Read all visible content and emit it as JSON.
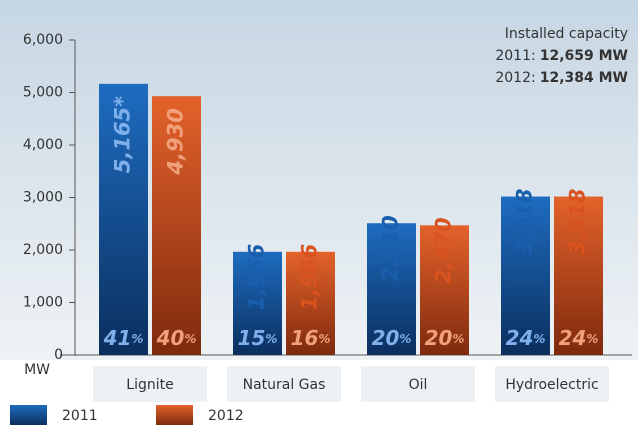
{
  "chart_data": {
    "type": "bar",
    "categories": [
      "Lignite",
      "Natural Gas",
      "Oil",
      "Hydroelectric"
    ],
    "series": [
      {
        "name": "2011",
        "color": "#1a5fae",
        "values": [
          5165,
          1966,
          2510,
          3018
        ],
        "value_labels": [
          "5,165*",
          "1,966",
          "2,510",
          "3,018"
        ],
        "shares": [
          41,
          15,
          20,
          24
        ]
      },
      {
        "name": "2012",
        "color": "#d9531e",
        "values": [
          4930,
          1966,
          2470,
          3018
        ],
        "value_labels": [
          "4,930",
          "1,966",
          "2,470",
          "3,018"
        ],
        "shares": [
          40,
          16,
          20,
          24
        ]
      }
    ],
    "share_unit": "%",
    "ylim": [
      0,
      6000
    ],
    "yticks": [
      0,
      {
        "value": 1000,
        "label": "1,000"
      },
      {
        "value": 2000,
        "label": "2,000"
      },
      {
        "value": 3000,
        "label": "3,000"
      },
      {
        "value": 4000,
        "label": "4,000"
      },
      {
        "value": 5000,
        "label": "5,000"
      },
      {
        "value": 6000,
        "label": "6,000"
      }
    ],
    "y_unit": "MW",
    "grid": false,
    "annotation": {
      "title": "Installed capacity",
      "lines": [
        {
          "label": "2011:",
          "text": "12,659 MW"
        },
        {
          "label": "2012:",
          "text": "12,384 MW"
        }
      ]
    }
  }
}
